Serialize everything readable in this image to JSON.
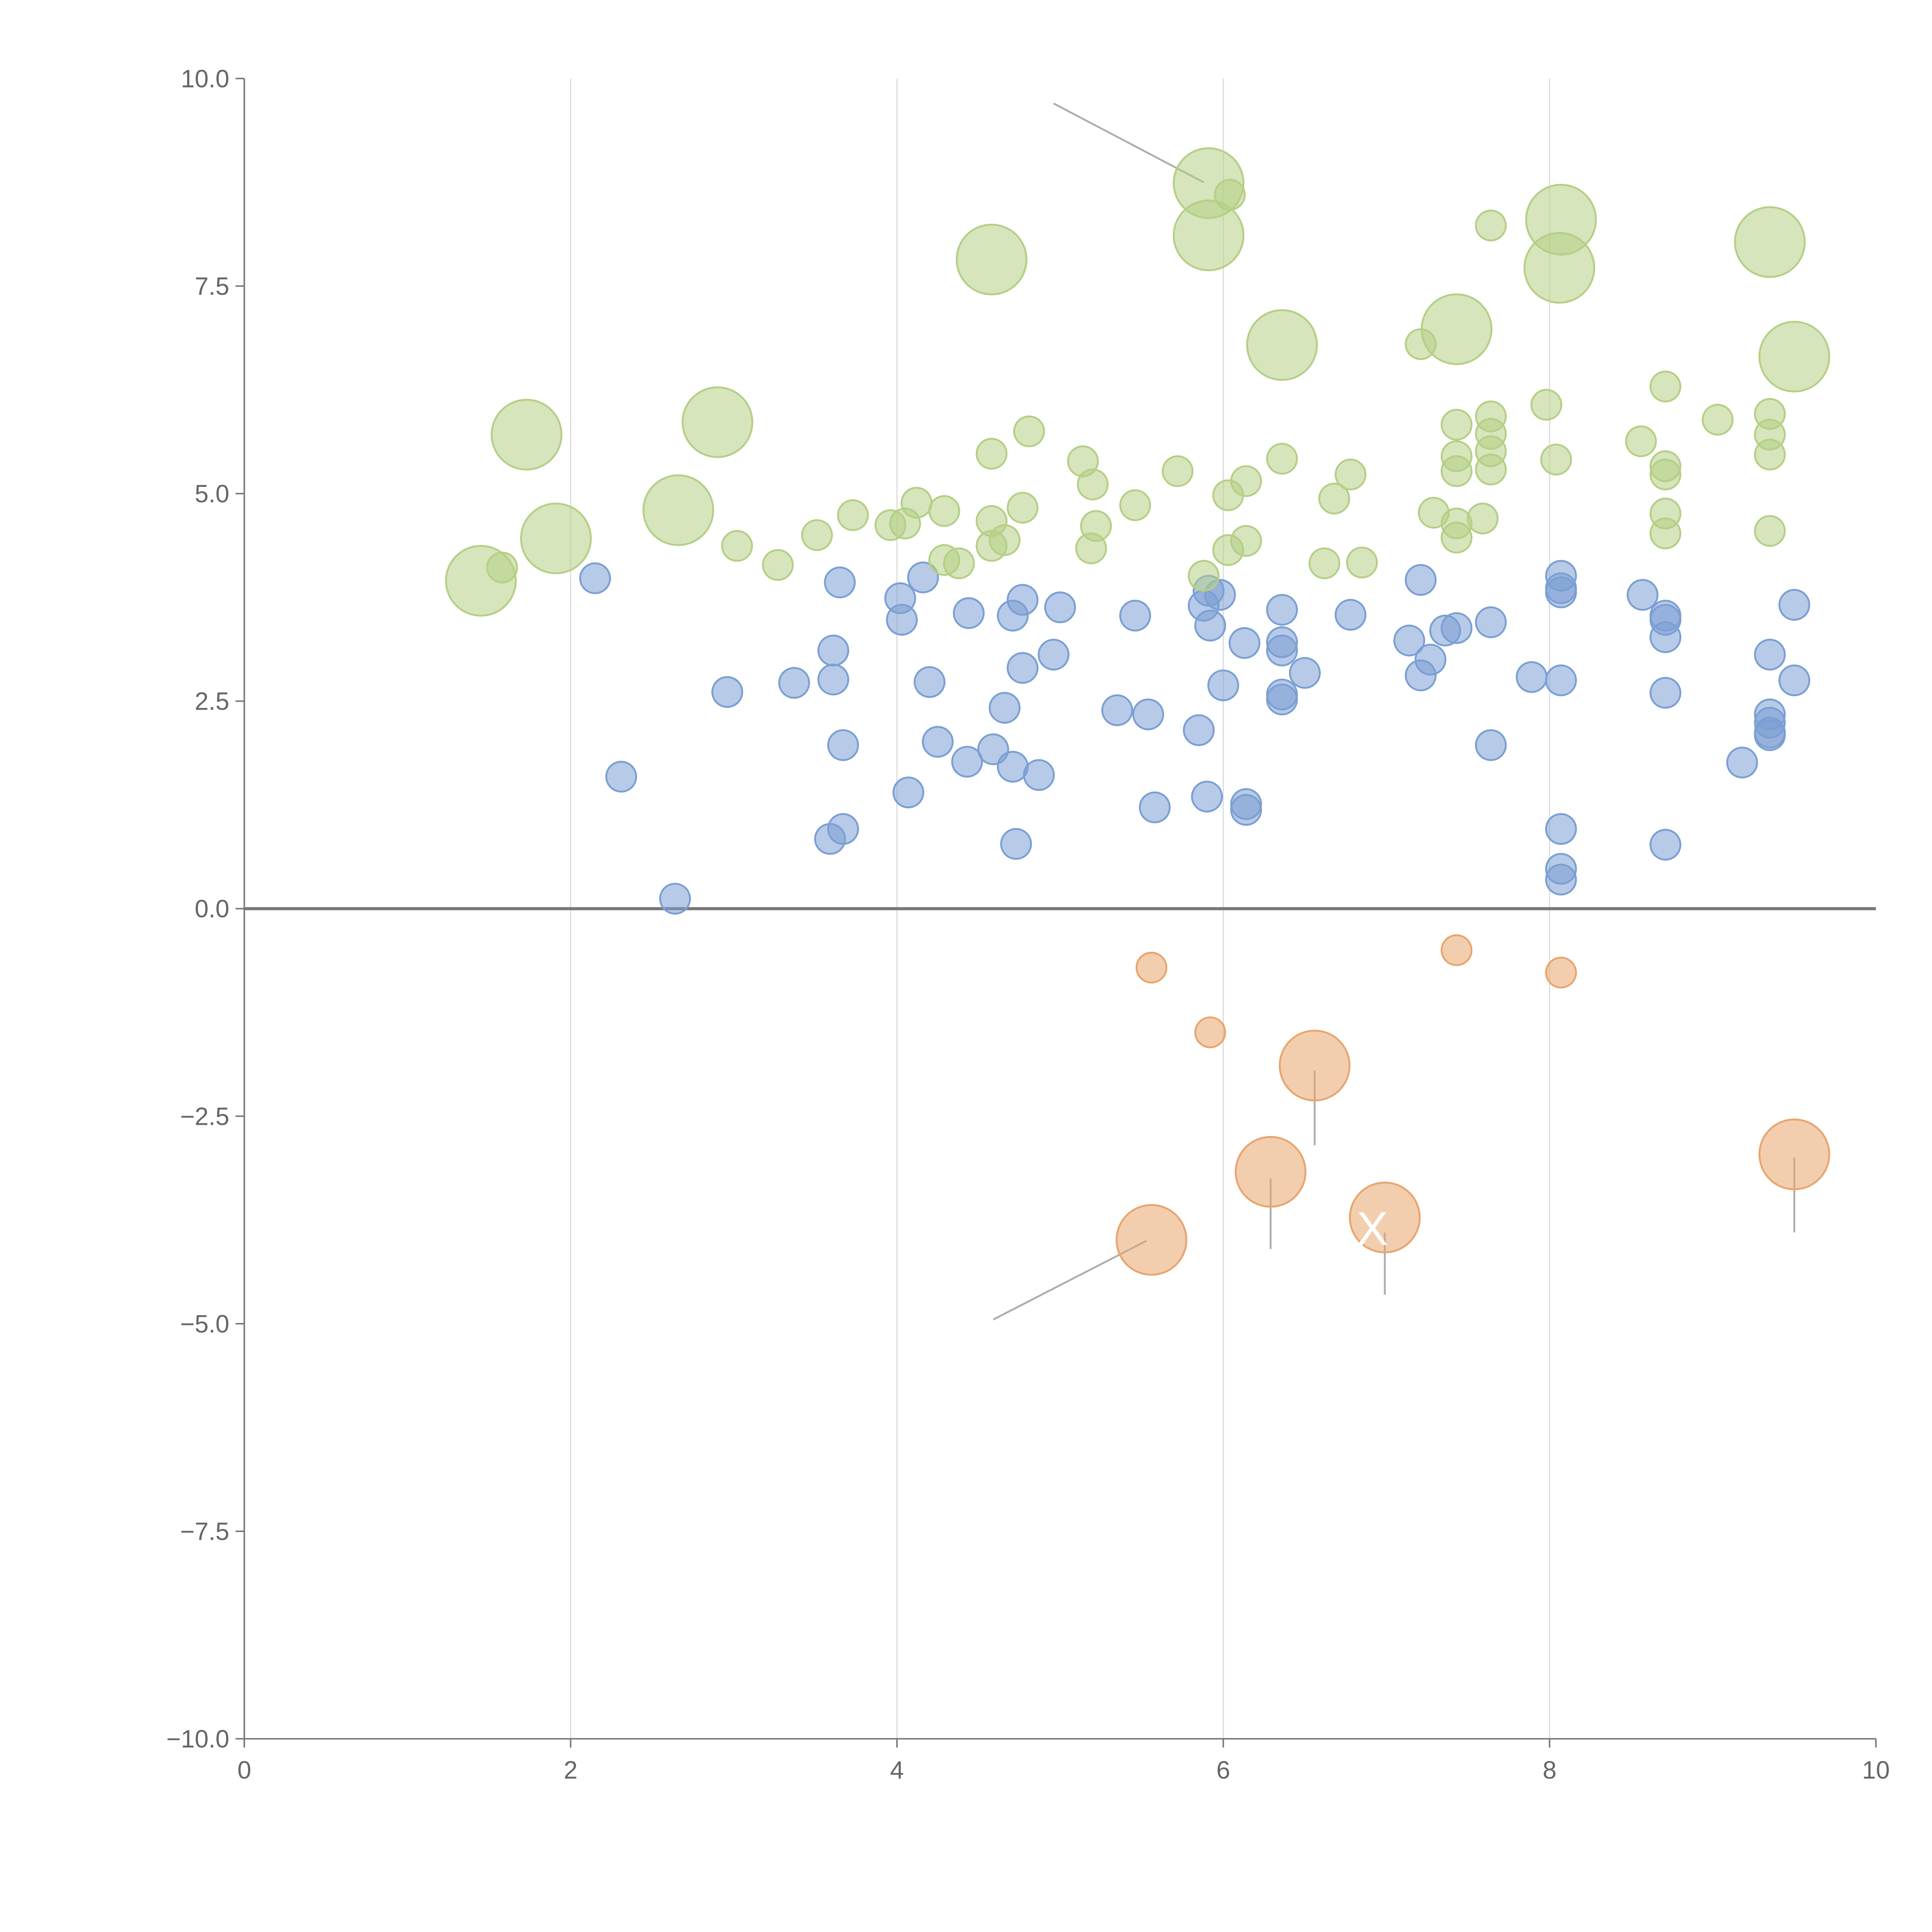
{
  "chart_data": {
    "type": "scatter",
    "subtype": "bubble",
    "title": "",
    "xlabel": "",
    "ylabel": "",
    "xlim": [
      0,
      10
    ],
    "ylim": [
      -10,
      10
    ],
    "grid": "vertical at x ticks",
    "x_ticks": [
      "0",
      "2",
      "4",
      "6",
      "8",
      "10"
    ],
    "x_tick_values": [
      0,
      2,
      4,
      6,
      8,
      10
    ],
    "y_ticks": [
      "10.0",
      "7.5",
      "5.0",
      "2.5",
      "0.0",
      "−2.5",
      "−5.0",
      "−7.5",
      "−10.0"
    ],
    "y_tick_values": [
      10,
      7.5,
      5,
      2.5,
      0,
      -2.5,
      -5,
      -7.5,
      -10
    ],
    "point_format": "[x, y, size]",
    "series": [
      {
        "name": "orange",
        "color": "#e8a56e",
        "points": [
          [
            5.56,
            -0.71,
            1
          ],
          [
            5.92,
            -1.49,
            1
          ],
          [
            7.43,
            -0.5,
            1
          ],
          [
            8.07,
            -0.77,
            1
          ],
          [
            6.56,
            -1.89,
            5
          ],
          [
            6.29,
            -3.17,
            5
          ],
          [
            5.56,
            -3.99,
            5
          ],
          [
            6.99,
            -3.72,
            5
          ],
          [
            9.5,
            -2.96,
            5
          ]
        ]
      },
      {
        "name": "blue",
        "color": "#7b9fd4",
        "points": [
          [
            2.15,
            3.98,
            1
          ],
          [
            2.31,
            1.59,
            1
          ],
          [
            2.64,
            0.12,
            1
          ],
          [
            2.96,
            2.61,
            1
          ],
          [
            3.37,
            2.72,
            1
          ],
          [
            3.59,
            0.84,
            1
          ],
          [
            3.67,
            0.96,
            1
          ],
          [
            3.61,
            2.76,
            1
          ],
          [
            3.61,
            3.11,
            1
          ],
          [
            3.65,
            3.93,
            1
          ],
          [
            3.67,
            1.97,
            1
          ],
          [
            4.02,
            3.74,
            1
          ],
          [
            4.03,
            3.48,
            1
          ],
          [
            4.07,
            1.4,
            1
          ],
          [
            4.16,
            3.99,
            1
          ],
          [
            4.2,
            2.73,
            1
          ],
          [
            4.25,
            2.01,
            1
          ],
          [
            4.43,
            1.77,
            1
          ],
          [
            4.44,
            3.56,
            1
          ],
          [
            4.59,
            1.92,
            1
          ],
          [
            4.66,
            2.42,
            1
          ],
          [
            4.71,
            3.53,
            1
          ],
          [
            4.71,
            1.71,
            1
          ],
          [
            4.73,
            0.78,
            1
          ],
          [
            4.77,
            3.72,
            1
          ],
          [
            4.77,
            2.9,
            1
          ],
          [
            4.87,
            1.61,
            1
          ],
          [
            4.96,
            3.06,
            1
          ],
          [
            5.0,
            3.63,
            1
          ],
          [
            5.35,
            2.39,
            1
          ],
          [
            5.46,
            3.53,
            1
          ],
          [
            5.54,
            2.34,
            1
          ],
          [
            5.58,
            1.22,
            1
          ],
          [
            5.85,
            2.15,
            1
          ],
          [
            5.9,
            1.35,
            1
          ],
          [
            5.88,
            3.65,
            1
          ],
          [
            5.91,
            3.83,
            1
          ],
          [
            5.92,
            3.41,
            1
          ],
          [
            5.98,
            3.78,
            1
          ],
          [
            6.0,
            2.69,
            1
          ],
          [
            6.13,
            3.2,
            1
          ],
          [
            6.14,
            1.26,
            1
          ],
          [
            6.14,
            1.19,
            1
          ],
          [
            6.36,
            3.6,
            1
          ],
          [
            6.36,
            3.21,
            1
          ],
          [
            6.36,
            3.11,
            1
          ],
          [
            6.36,
            2.58,
            1
          ],
          [
            6.36,
            2.52,
            1
          ],
          [
            6.5,
            2.84,
            1
          ],
          [
            6.78,
            3.54,
            1
          ],
          [
            7.14,
            3.23,
            1
          ],
          [
            7.21,
            3.96,
            1
          ],
          [
            7.21,
            2.81,
            1
          ],
          [
            7.27,
            3.0,
            1
          ],
          [
            7.36,
            3.35,
            1
          ],
          [
            7.43,
            3.38,
            1
          ],
          [
            7.64,
            3.45,
            1
          ],
          [
            7.64,
            1.97,
            1
          ],
          [
            7.89,
            2.79,
            1
          ],
          [
            8.07,
            4.01,
            1
          ],
          [
            8.07,
            3.86,
            1
          ],
          [
            8.07,
            3.81,
            1
          ],
          [
            8.07,
            2.75,
            1
          ],
          [
            8.07,
            0.96,
            1
          ],
          [
            8.07,
            0.48,
            1
          ],
          [
            8.07,
            0.35,
            1
          ],
          [
            8.57,
            3.78,
            1
          ],
          [
            8.71,
            3.53,
            1
          ],
          [
            8.71,
            3.48,
            1
          ],
          [
            8.71,
            3.27,
            1
          ],
          [
            8.71,
            2.6,
            1
          ],
          [
            8.71,
            0.77,
            1
          ],
          [
            9.18,
            1.76,
            1
          ],
          [
            9.35,
            3.06,
            1
          ],
          [
            9.35,
            2.34,
            1
          ],
          [
            9.35,
            2.24,
            1
          ],
          [
            9.35,
            2.12,
            1
          ],
          [
            9.35,
            2.09,
            1
          ],
          [
            9.5,
            3.66,
            1
          ],
          [
            9.5,
            2.75,
            1
          ]
        ]
      },
      {
        "name": "green",
        "color": "#b5cf85",
        "points": [
          [
            1.58,
            4.11,
            1
          ],
          [
            3.02,
            4.37,
            1
          ],
          [
            3.27,
            4.14,
            1
          ],
          [
            3.51,
            4.5,
            1
          ],
          [
            3.73,
            4.74,
            1
          ],
          [
            3.96,
            4.62,
            1
          ],
          [
            4.05,
            4.64,
            1
          ],
          [
            4.12,
            4.89,
            1
          ],
          [
            4.29,
            4.79,
            1
          ],
          [
            4.29,
            4.2,
            1
          ],
          [
            4.38,
            4.16,
            1
          ],
          [
            4.58,
            5.48,
            1
          ],
          [
            4.58,
            4.67,
            1
          ],
          [
            4.58,
            4.37,
            1
          ],
          [
            4.66,
            4.44,
            1
          ],
          [
            4.77,
            4.83,
            1
          ],
          [
            4.81,
            5.75,
            1
          ],
          [
            5.14,
            5.39,
            1
          ],
          [
            5.2,
            5.11,
            1
          ],
          [
            5.22,
            4.61,
            1
          ],
          [
            5.19,
            4.34,
            1
          ],
          [
            5.46,
            4.86,
            1
          ],
          [
            5.72,
            5.27,
            1
          ],
          [
            5.88,
            4.01,
            1
          ],
          [
            6.03,
            4.98,
            1
          ],
          [
            6.03,
            4.32,
            1
          ],
          [
            6.14,
            5.15,
            1
          ],
          [
            6.14,
            4.43,
            1
          ],
          [
            6.04,
            8.6,
            1
          ],
          [
            6.36,
            5.42,
            1
          ],
          [
            6.62,
            4.16,
            1
          ],
          [
            6.68,
            4.94,
            1
          ],
          [
            6.78,
            5.23,
            1
          ],
          [
            6.85,
            4.17,
            1
          ],
          [
            7.21,
            6.8,
            1
          ],
          [
            7.29,
            4.77,
            1
          ],
          [
            7.43,
            5.83,
            1
          ],
          [
            7.43,
            5.45,
            1
          ],
          [
            7.43,
            5.27,
            1
          ],
          [
            7.43,
            4.64,
            1
          ],
          [
            7.43,
            4.47,
            1
          ],
          [
            7.59,
            4.7,
            1
          ],
          [
            7.64,
            8.23,
            1
          ],
          [
            7.64,
            5.93,
            1
          ],
          [
            7.64,
            5.72,
            1
          ],
          [
            7.64,
            5.51,
            1
          ],
          [
            7.64,
            5.29,
            1
          ],
          [
            7.98,
            6.07,
            1
          ],
          [
            8.04,
            5.41,
            1
          ],
          [
            8.56,
            5.63,
            1
          ],
          [
            8.71,
            6.29,
            1
          ],
          [
            8.71,
            5.33,
            1
          ],
          [
            8.71,
            5.23,
            1
          ],
          [
            8.71,
            4.76,
            1
          ],
          [
            8.71,
            4.52,
            1
          ],
          [
            9.03,
            5.89,
            1
          ],
          [
            9.35,
            5.96,
            1
          ],
          [
            9.35,
            5.71,
            1
          ],
          [
            9.35,
            5.47,
            1
          ],
          [
            9.35,
            4.55,
            1
          ],
          [
            1.45,
            3.95,
            5
          ],
          [
            1.73,
            5.71,
            5
          ],
          [
            1.91,
            4.46,
            5
          ],
          [
            2.66,
            4.8,
            5
          ],
          [
            2.9,
            5.86,
            5
          ],
          [
            4.58,
            7.82,
            5
          ],
          [
            5.91,
            8.74,
            5
          ],
          [
            5.91,
            8.11,
            5
          ],
          [
            6.36,
            6.79,
            5
          ],
          [
            7.43,
            6.98,
            5
          ],
          [
            8.07,
            8.3,
            5
          ],
          [
            8.06,
            7.72,
            5
          ],
          [
            9.35,
            8.03,
            5
          ],
          [
            9.5,
            6.65,
            5
          ]
        ]
      }
    ],
    "annotations": [
      {
        "text": "X",
        "x": 6.99,
        "y": -3.72,
        "color": "#ffffff"
      }
    ]
  }
}
